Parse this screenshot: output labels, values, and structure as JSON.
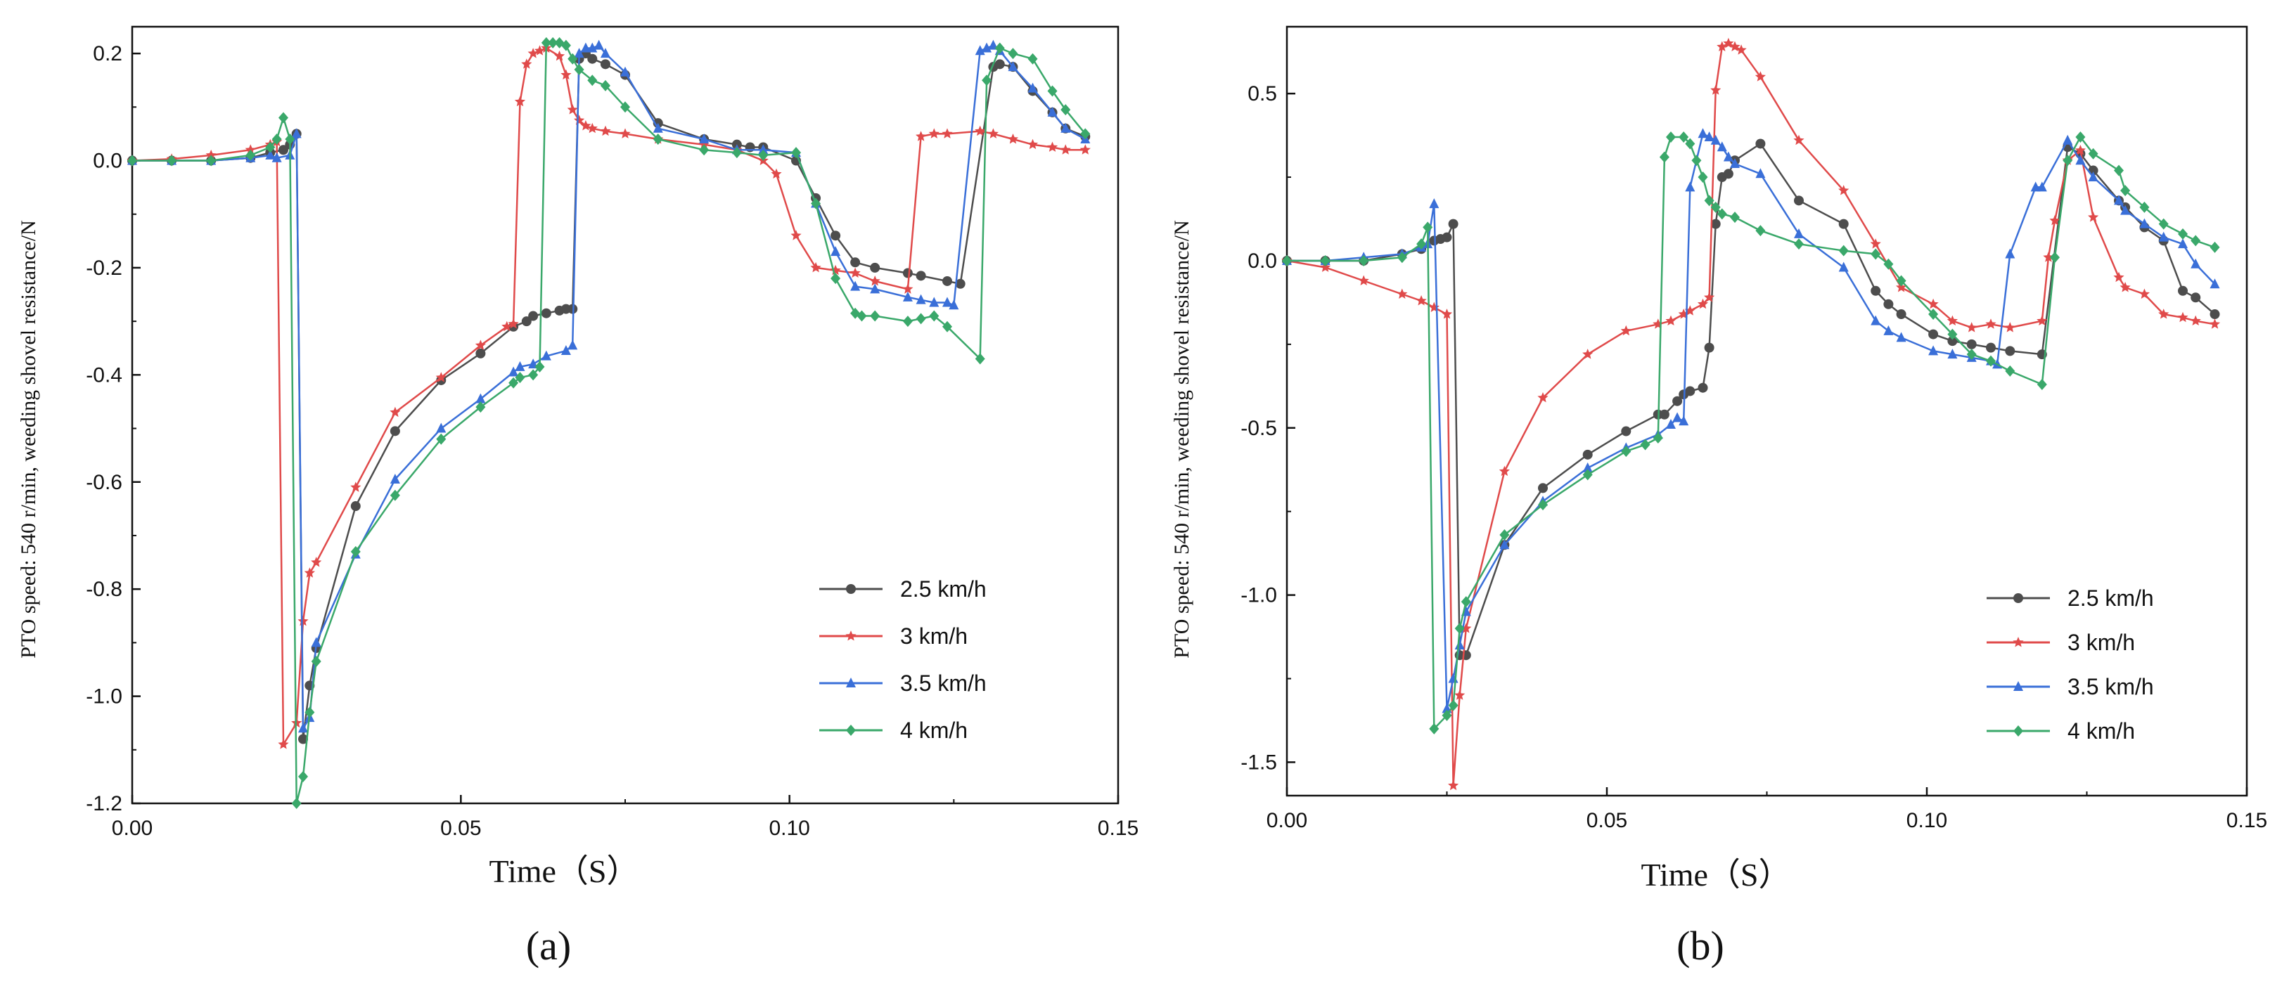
{
  "chart_data": [
    {
      "type": "line",
      "panel_label": "(a)",
      "title": "",
      "xlabel": "Time（S）",
      "ylabel": "PTO speed: 540 r/min, weeding shovel resistance/N",
      "xlim": [
        0,
        0.15
      ],
      "ylim": [
        -1.2,
        0.25
      ],
      "xticks": [
        0.0,
        0.05,
        0.1,
        0.15
      ],
      "xtick_labels": [
        "0.00",
        "0.05",
        "0.10",
        "0.15"
      ],
      "yticks": [
        -1.2,
        -1.0,
        -0.8,
        -0.6,
        -0.4,
        -0.2,
        0.0,
        0.2
      ],
      "ytick_labels": [
        "-1.2",
        "-1.0",
        "-0.8",
        "-0.6",
        "-0.4",
        "-0.2",
        "0.0",
        "0.2"
      ],
      "grid": false,
      "legend_position": "bottom-right",
      "series": [
        {
          "name": "2.5 km/h",
          "color": "#4d4d4d",
          "marker": "circle",
          "x": [
            0,
            0.006,
            0.012,
            0.018,
            0.021,
            0.023,
            0.024,
            0.025,
            0.026,
            0.027,
            0.028,
            0.034,
            0.04,
            0.047,
            0.053,
            0.058,
            0.06,
            0.061,
            0.063,
            0.065,
            0.066,
            0.067,
            0.068,
            0.069,
            0.07,
            0.072,
            0.075,
            0.08,
            0.087,
            0.092,
            0.094,
            0.096,
            0.101,
            0.104,
            0.107,
            0.11,
            0.113,
            0.118,
            0.12,
            0.124,
            0.126,
            0.131,
            0.132,
            0.134,
            0.137,
            0.14,
            0.142,
            0.145
          ],
          "y": [
            0,
            0,
            0,
            0.005,
            0.015,
            0.02,
            0.03,
            0.05,
            -1.08,
            -0.98,
            -0.91,
            -0.645,
            -0.505,
            -0.41,
            -0.36,
            -0.31,
            -0.3,
            -0.29,
            -0.285,
            -0.28,
            -0.277,
            -0.277,
            0.19,
            0.2,
            0.19,
            0.18,
            0.16,
            0.07,
            0.04,
            0.03,
            0.025,
            0.025,
            0.0,
            -0.07,
            -0.14,
            -0.19,
            -0.2,
            -0.21,
            -0.215,
            -0.225,
            -0.23,
            0.175,
            0.18,
            0.175,
            0.13,
            0.09,
            0.06,
            0.045
          ]
        },
        {
          "name": "3 km/h",
          "color": "#e04a4a",
          "marker": "star",
          "x": [
            0,
            0.006,
            0.012,
            0.018,
            0.021,
            0.022,
            0.023,
            0.025,
            0.026,
            0.027,
            0.028,
            0.034,
            0.04,
            0.047,
            0.053,
            0.057,
            0.058,
            0.059,
            0.06,
            0.061,
            0.062,
            0.063,
            0.065,
            0.066,
            0.067,
            0.068,
            0.069,
            0.07,
            0.072,
            0.075,
            0.08,
            0.087,
            0.092,
            0.096,
            0.098,
            0.101,
            0.104,
            0.107,
            0.11,
            0.113,
            0.118,
            0.12,
            0.122,
            0.124,
            0.129,
            0.131,
            0.134,
            0.137,
            0.14,
            0.142,
            0.145
          ],
          "y": [
            0,
            0.003,
            0.01,
            0.02,
            0.03,
            0.035,
            -1.09,
            -1.05,
            -0.86,
            -0.77,
            -0.75,
            -0.61,
            -0.47,
            -0.405,
            -0.345,
            -0.31,
            -0.305,
            0.11,
            0.18,
            0.2,
            0.205,
            0.21,
            0.195,
            0.16,
            0.095,
            0.075,
            0.065,
            0.06,
            0.055,
            0.05,
            0.04,
            0.03,
            0.02,
            0.0,
            -0.025,
            -0.14,
            -0.2,
            -0.205,
            -0.21,
            -0.225,
            -0.24,
            0.045,
            0.05,
            0.05,
            0.055,
            0.05,
            0.04,
            0.03,
            0.025,
            0.02,
            0.02
          ]
        },
        {
          "name": "3.5 km/h",
          "color": "#3a6fd8",
          "marker": "triangle",
          "x": [
            0,
            0.006,
            0.012,
            0.018,
            0.021,
            0.022,
            0.024,
            0.025,
            0.026,
            0.027,
            0.028,
            0.034,
            0.04,
            0.047,
            0.053,
            0.058,
            0.059,
            0.061,
            0.063,
            0.066,
            0.067,
            0.068,
            0.069,
            0.07,
            0.071,
            0.072,
            0.075,
            0.08,
            0.087,
            0.092,
            0.096,
            0.101,
            0.104,
            0.107,
            0.11,
            0.113,
            0.118,
            0.12,
            0.122,
            0.124,
            0.125,
            0.129,
            0.13,
            0.131,
            0.132,
            0.134,
            0.137,
            0.14,
            0.142,
            0.145
          ],
          "y": [
            0,
            0,
            0,
            0.005,
            0.01,
            0.005,
            0.01,
            0.05,
            -1.06,
            -1.04,
            -0.9,
            -0.735,
            -0.595,
            -0.5,
            -0.445,
            -0.395,
            -0.385,
            -0.38,
            -0.365,
            -0.355,
            -0.345,
            0.2,
            0.21,
            0.21,
            0.215,
            0.2,
            0.165,
            0.06,
            0.04,
            0.02,
            0.02,
            0.015,
            -0.08,
            -0.17,
            -0.235,
            -0.24,
            -0.255,
            -0.26,
            -0.265,
            -0.265,
            -0.27,
            0.205,
            0.21,
            0.215,
            0.205,
            0.175,
            0.135,
            0.09,
            0.06,
            0.04
          ]
        },
        {
          "name": "4 km/h",
          "color": "#3aa86a",
          "marker": "diamond",
          "x": [
            0,
            0.006,
            0.012,
            0.018,
            0.021,
            0.022,
            0.023,
            0.024,
            0.025,
            0.026,
            0.027,
            0.028,
            0.034,
            0.04,
            0.047,
            0.053,
            0.058,
            0.059,
            0.061,
            0.062,
            0.063,
            0.064,
            0.065,
            0.066,
            0.067,
            0.068,
            0.07,
            0.072,
            0.075,
            0.08,
            0.087,
            0.092,
            0.096,
            0.101,
            0.104,
            0.107,
            0.11,
            0.111,
            0.113,
            0.118,
            0.12,
            0.122,
            0.124,
            0.129,
            0.13,
            0.132,
            0.134,
            0.137,
            0.14,
            0.142,
            0.145
          ],
          "y": [
            0,
            0,
            0,
            0.01,
            0.025,
            0.04,
            0.08,
            0.04,
            -1.2,
            -1.15,
            -1.03,
            -0.935,
            -0.73,
            -0.625,
            -0.52,
            -0.46,
            -0.415,
            -0.405,
            -0.4,
            -0.385,
            0.22,
            0.22,
            0.22,
            0.215,
            0.19,
            0.17,
            0.15,
            0.14,
            0.1,
            0.04,
            0.02,
            0.015,
            0.01,
            0.015,
            -0.08,
            -0.22,
            -0.285,
            -0.29,
            -0.29,
            -0.3,
            -0.295,
            -0.29,
            -0.31,
            -0.37,
            0.15,
            0.21,
            0.2,
            0.19,
            0.13,
            0.095,
            0.05
          ]
        }
      ]
    },
    {
      "type": "line",
      "panel_label": "(b)",
      "title": "",
      "xlabel": "Time（S）",
      "ylabel": "PTO speed: 540 r/min, weeding shovel resistance/N",
      "xlim": [
        0,
        0.15
      ],
      "ylim": [
        -1.6,
        0.7
      ],
      "xticks": [
        0.0,
        0.05,
        0.1,
        0.15
      ],
      "xtick_labels": [
        "0.00",
        "0.05",
        "0.10",
        "0.15"
      ],
      "yticks": [
        -1.5,
        -1.0,
        -0.5,
        0.0,
        0.5
      ],
      "ytick_labels": [
        "-1.5",
        "-1.0",
        "-0.5",
        "0.0",
        "0.5"
      ],
      "grid": false,
      "legend_position": "bottom-right",
      "series": [
        {
          "name": "2.5 km/h",
          "color": "#4d4d4d",
          "marker": "circle",
          "x": [
            0,
            0.006,
            0.012,
            0.018,
            0.021,
            0.023,
            0.024,
            0.025,
            0.026,
            0.027,
            0.028,
            0.034,
            0.04,
            0.047,
            0.053,
            0.058,
            0.059,
            0.061,
            0.062,
            0.063,
            0.065,
            0.066,
            0.067,
            0.068,
            0.069,
            0.07,
            0.074,
            0.08,
            0.087,
            0.092,
            0.094,
            0.096,
            0.101,
            0.104,
            0.107,
            0.11,
            0.113,
            0.118,
            0.122,
            0.124,
            0.126,
            0.13,
            0.131,
            0.134,
            0.137,
            0.14,
            0.142,
            0.145
          ],
          "y": [
            0,
            0,
            0,
            0.02,
            0.035,
            0.06,
            0.065,
            0.07,
            0.11,
            -1.18,
            -1.18,
            -0.85,
            -0.68,
            -0.58,
            -0.51,
            -0.46,
            -0.46,
            -0.42,
            -0.4,
            -0.39,
            -0.38,
            -0.26,
            0.11,
            0.25,
            0.26,
            0.3,
            0.35,
            0.18,
            0.11,
            -0.09,
            -0.13,
            -0.16,
            -0.22,
            -0.24,
            -0.25,
            -0.26,
            -0.27,
            -0.28,
            0.34,
            0.32,
            0.27,
            0.18,
            0.16,
            0.1,
            0.06,
            -0.09,
            -0.11,
            -0.16
          ]
        },
        {
          "name": "3 km/h",
          "color": "#e04a4a",
          "marker": "star",
          "x": [
            0,
            0.006,
            0.012,
            0.018,
            0.021,
            0.023,
            0.025,
            0.026,
            0.027,
            0.028,
            0.034,
            0.04,
            0.047,
            0.053,
            0.058,
            0.06,
            0.062,
            0.063,
            0.065,
            0.066,
            0.067,
            0.068,
            0.069,
            0.07,
            0.071,
            0.074,
            0.08,
            0.087,
            0.092,
            0.096,
            0.101,
            0.104,
            0.107,
            0.11,
            0.113,
            0.118,
            0.119,
            0.12,
            0.122,
            0.124,
            0.126,
            0.13,
            0.131,
            0.134,
            0.137,
            0.14,
            0.142,
            0.145
          ],
          "y": [
            0,
            -0.02,
            -0.06,
            -0.1,
            -0.12,
            -0.14,
            -0.16,
            -1.57,
            -1.3,
            -1.1,
            -0.63,
            -0.41,
            -0.28,
            -0.21,
            -0.19,
            -0.18,
            -0.16,
            -0.15,
            -0.13,
            -0.11,
            0.51,
            0.64,
            0.65,
            0.64,
            0.63,
            0.55,
            0.36,
            0.21,
            0.05,
            -0.08,
            -0.13,
            -0.18,
            -0.2,
            -0.19,
            -0.2,
            -0.18,
            0.01,
            0.12,
            0.3,
            0.33,
            0.13,
            -0.05,
            -0.08,
            -0.1,
            -0.16,
            -0.17,
            -0.18,
            -0.19
          ]
        },
        {
          "name": "3.5 km/h",
          "color": "#3a6fd8",
          "marker": "triangle",
          "x": [
            0,
            0.006,
            0.012,
            0.018,
            0.021,
            0.022,
            0.023,
            0.025,
            0.026,
            0.027,
            0.028,
            0.034,
            0.04,
            0.047,
            0.053,
            0.058,
            0.06,
            0.061,
            0.062,
            0.063,
            0.065,
            0.066,
            0.067,
            0.068,
            0.069,
            0.07,
            0.074,
            0.08,
            0.087,
            0.092,
            0.094,
            0.096,
            0.101,
            0.104,
            0.107,
            0.11,
            0.111,
            0.113,
            0.117,
            0.118,
            0.122,
            0.124,
            0.126,
            0.13,
            0.131,
            0.134,
            0.137,
            0.14,
            0.142,
            0.145
          ],
          "y": [
            0,
            0,
            0.01,
            0.02,
            0.04,
            0.05,
            0.17,
            -1.34,
            -1.25,
            -1.15,
            -1.05,
            -0.85,
            -0.72,
            -0.62,
            -0.56,
            -0.52,
            -0.49,
            -0.47,
            -0.48,
            0.22,
            0.38,
            0.37,
            0.36,
            0.34,
            0.31,
            0.29,
            0.26,
            0.08,
            -0.02,
            -0.18,
            -0.21,
            -0.23,
            -0.27,
            -0.28,
            -0.29,
            -0.3,
            -0.31,
            0.02,
            0.22,
            0.22,
            0.36,
            0.3,
            0.25,
            0.18,
            0.15,
            0.11,
            0.07,
            0.05,
            -0.01,
            -0.07
          ]
        },
        {
          "name": "4 km/h",
          "color": "#3aa86a",
          "marker": "diamond",
          "x": [
            0,
            0.006,
            0.012,
            0.018,
            0.021,
            0.022,
            0.023,
            0.025,
            0.026,
            0.027,
            0.028,
            0.034,
            0.04,
            0.047,
            0.053,
            0.056,
            0.058,
            0.059,
            0.06,
            0.062,
            0.063,
            0.064,
            0.065,
            0.066,
            0.067,
            0.068,
            0.07,
            0.074,
            0.08,
            0.087,
            0.092,
            0.094,
            0.096,
            0.101,
            0.104,
            0.107,
            0.11,
            0.113,
            0.118,
            0.12,
            0.122,
            0.124,
            0.126,
            0.13,
            0.131,
            0.134,
            0.137,
            0.14,
            0.142,
            0.145
          ],
          "y": [
            0,
            0,
            0,
            0.01,
            0.05,
            0.1,
            -1.4,
            -1.36,
            -1.33,
            -1.1,
            -1.02,
            -0.82,
            -0.73,
            -0.64,
            -0.57,
            -0.55,
            -0.53,
            0.31,
            0.37,
            0.37,
            0.35,
            0.3,
            0.25,
            0.18,
            0.16,
            0.14,
            0.13,
            0.09,
            0.05,
            0.03,
            0.02,
            -0.01,
            -0.06,
            -0.16,
            -0.22,
            -0.28,
            -0.3,
            -0.33,
            -0.37,
            0.01,
            0.3,
            0.37,
            0.32,
            0.27,
            0.21,
            0.16,
            0.11,
            0.08,
            0.06,
            0.04
          ]
        }
      ]
    }
  ]
}
